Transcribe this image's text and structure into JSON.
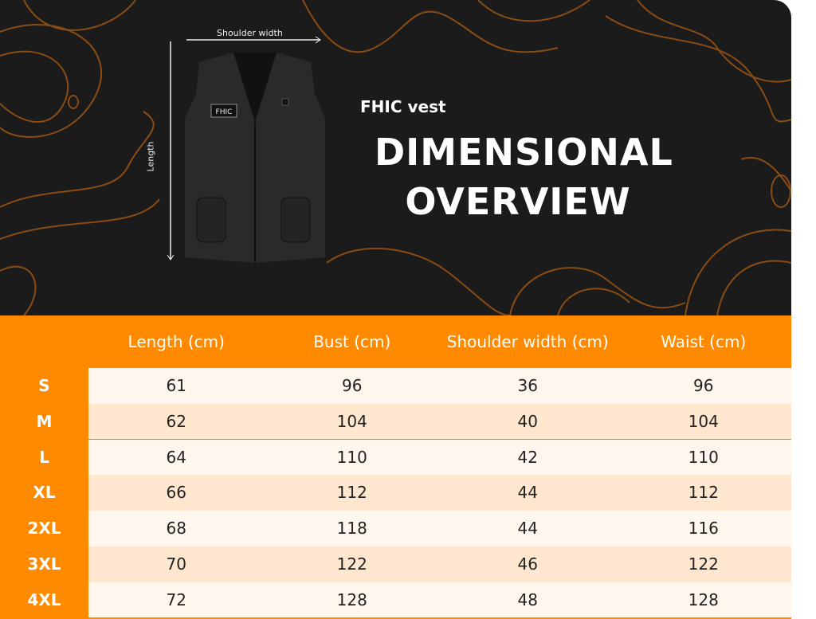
{
  "hero": {
    "brand_line": "FHIC vest",
    "title_line1": "DIMENSIONAL",
    "title_line2": "OVERVIEW",
    "shoulder_label": "Shoulder width",
    "length_label": "Length",
    "patch_text": "FHIC"
  },
  "colors": {
    "accent": "#ff8a00",
    "dark": "#1b1b1b",
    "row_light": "#fff6ee",
    "row_alt": "#ffe7cf",
    "topo": "#a0581a"
  },
  "table": {
    "headers": [
      "Length (cm)",
      "Bust (cm)",
      "Shoulder width (cm)",
      "Waist (cm)"
    ],
    "rows": [
      {
        "size": "S",
        "values": [
          "61",
          "96",
          "36",
          "96"
        ]
      },
      {
        "size": "M",
        "values": [
          "62",
          "104",
          "40",
          "104"
        ]
      },
      {
        "size": "L",
        "values": [
          "64",
          "110",
          "42",
          "110"
        ]
      },
      {
        "size": "XL",
        "values": [
          "66",
          "112",
          "44",
          "112"
        ]
      },
      {
        "size": "2XL",
        "values": [
          "68",
          "118",
          "44",
          "116"
        ]
      },
      {
        "size": "3XL",
        "values": [
          "70",
          "122",
          "46",
          "122"
        ]
      },
      {
        "size": "4XL",
        "values": [
          "72",
          "128",
          "48",
          "128"
        ]
      }
    ]
  }
}
